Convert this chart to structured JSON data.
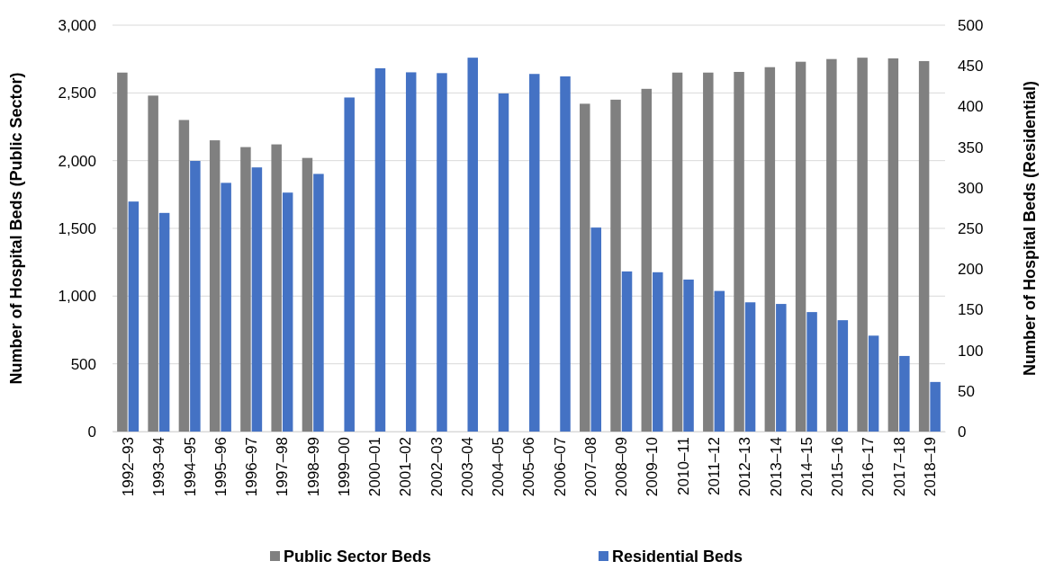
{
  "chart_data": {
    "type": "bar",
    "ylabel": "Number of Hospital Beds (Public Sector)",
    "y2label": "Number of Hospital Beds (Residential)",
    "categories": [
      "1992–93",
      "1993–94",
      "1994–95",
      "1995–96",
      "1996–97",
      "1997–98",
      "1998–99",
      "1999–00",
      "2000–01",
      "2001–02",
      "2002–03",
      "2003–04",
      "2004–05",
      "2005–06",
      "2006–07",
      "2007–08",
      "2008–09",
      "2009–10",
      "2010–11",
      "2011–12",
      "2012–13",
      "2013–14",
      "2014–15",
      "2015–16",
      "2016–17",
      "2017–18",
      "2018–19"
    ],
    "series": [
      {
        "name": "Public Sector Beds",
        "color": "#808080",
        "values": [
          2650,
          2480,
          2300,
          2150,
          2100,
          2120,
          2020,
          null,
          null,
          null,
          null,
          null,
          null,
          null,
          null,
          2420,
          2450,
          2530,
          2650,
          2650,
          2655,
          2690,
          2730,
          2750,
          2760,
          2755,
          2735
        ]
      },
      {
        "name": "Residential Beds",
        "color": "#4472c4",
        "axis": "y2",
        "values": [
          283,
          269,
          333,
          306,
          325,
          294,
          317,
          411,
          447,
          442,
          441,
          460,
          416,
          440,
          437,
          251,
          197,
          196,
          187,
          173,
          159,
          157,
          147,
          137,
          118,
          93,
          61
        ]
      }
    ],
    "ylim": [
      0,
      3000
    ],
    "yticks": [
      {
        "value": 0,
        "label": "0"
      },
      {
        "value": 500,
        "label": "500"
      },
      {
        "value": 1000,
        "label": "1,000"
      },
      {
        "value": 1500,
        "label": "1,500"
      },
      {
        "value": 2000,
        "label": "2,000"
      },
      {
        "value": 2500,
        "label": "2,500"
      },
      {
        "value": 3000,
        "label": "3,000"
      }
    ],
    "y2lim": [
      0,
      500
    ],
    "y2ticks": [
      0,
      50,
      100,
      150,
      200,
      250,
      300,
      350,
      400,
      450,
      500
    ],
    "grid": "y",
    "legend": "bottom"
  }
}
